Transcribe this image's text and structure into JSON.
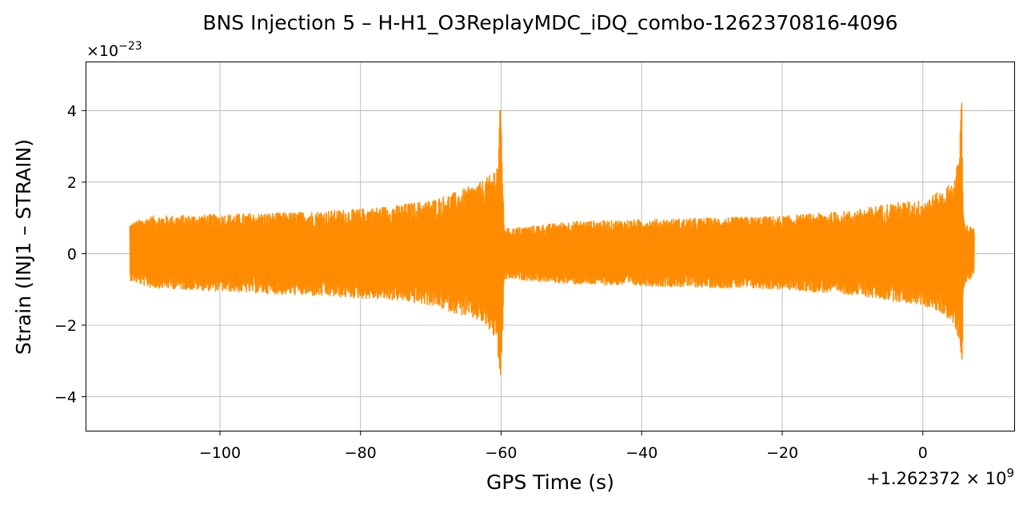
{
  "chart_data": {
    "type": "line",
    "title": "BNS Injection 5 – H-H1_O3ReplayMDC_iDQ_combo-1262370816-4096",
    "xlabel": "GPS Time (s)",
    "ylabel": "Strain (INJ1 – STRAIN)",
    "x_offset_label": "+1.262372 × 10",
    "x_offset_exponent": "9",
    "y_scale_label": "×10",
    "y_scale_exponent": "−23",
    "xlim": [
      -119,
      13
    ],
    "ylim": [
      -4.95,
      5.35
    ],
    "x_ticks": [
      -100,
      -80,
      -60,
      -40,
      -20,
      0
    ],
    "x_tick_labels": [
      "−100",
      "−80",
      "−60",
      "−40",
      "−20",
      "0"
    ],
    "y_ticks": [
      -4,
      -2,
      0,
      2,
      4
    ],
    "y_tick_labels": [
      "−4",
      "−2",
      "0",
      "2",
      "4"
    ],
    "grid": true,
    "series": [
      {
        "color": "#ff8c00",
        "x_range": [
          -112.8,
          7.3
        ],
        "envelope": {
          "x": [
            -112.8,
            -110,
            -100,
            -90,
            -80,
            -75,
            -70,
            -66,
            -63,
            -61.5,
            -60.5,
            -60.1,
            -59.9,
            -59.6,
            -59,
            -50,
            -40,
            -30,
            -20,
            -10,
            -5,
            0,
            3,
            4.5,
            5.2,
            5.5,
            5.8,
            6.3,
            7.3
          ],
          "upper": [
            0.85,
            1.05,
            1.1,
            1.15,
            1.25,
            1.35,
            1.5,
            1.75,
            2.0,
            2.2,
            2.6,
            4.3,
            3.5,
            0.8,
            0.7,
            0.9,
            0.95,
            1.0,
            1.05,
            1.2,
            1.4,
            1.5,
            1.8,
            2.1,
            2.8,
            4.9,
            1.0,
            0.8,
            0.7
          ],
          "lower": [
            -0.75,
            -0.95,
            -1.05,
            -1.15,
            -1.25,
            -1.3,
            -1.45,
            -1.7,
            -1.9,
            -2.2,
            -2.5,
            -4.5,
            -3.3,
            -0.75,
            -0.7,
            -0.85,
            -0.9,
            -0.95,
            -1.0,
            -1.15,
            -1.3,
            -1.45,
            -1.7,
            -2.0,
            -2.6,
            -3.9,
            -0.95,
            -0.75,
            -0.65
          ]
        }
      }
    ]
  }
}
